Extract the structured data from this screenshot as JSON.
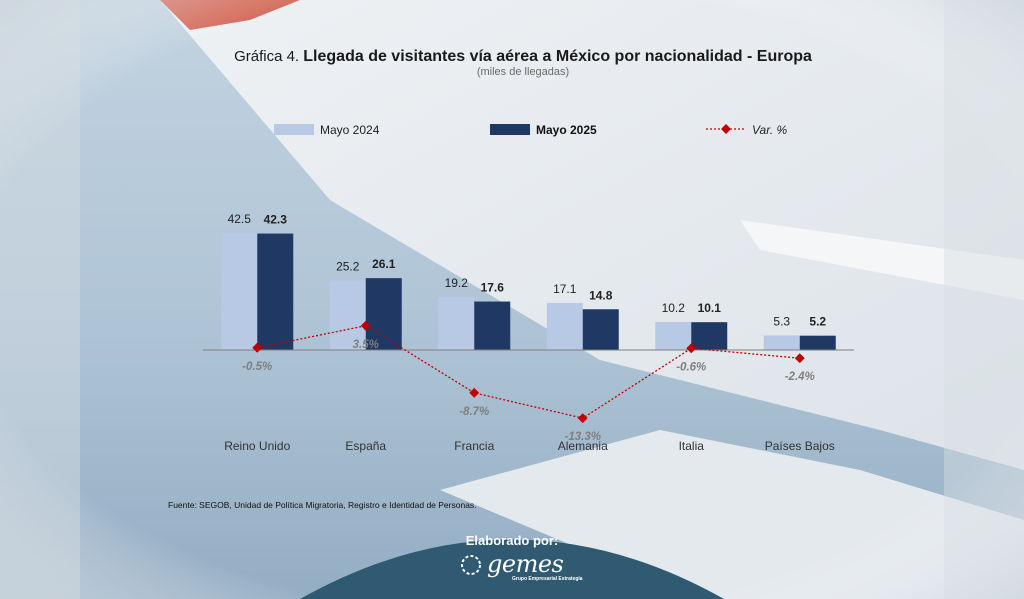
{
  "title": {
    "prefix": "Gráfica 4.",
    "main": "Llegada de visitantes vía aérea a México por nacionalidad - Europa",
    "subtitle": "(miles de llegadas)"
  },
  "source": "Fuente: SEGOB, Unidad de Política Migratoria, Registro e Identidad de Personas.",
  "footer": {
    "label": "Elaborado por:",
    "logo": "gemes",
    "logo_subtitle": "Grupo Empresarial Estrategia"
  },
  "colors": {
    "may2024": "#b8c9e6",
    "may2025": "#1f3864",
    "var": "#c00000",
    "footer_bg": "#2f5a72"
  },
  "chart_data": {
    "type": "bar",
    "categories": [
      "Reino Unido",
      "España",
      "Francia",
      "Alemania",
      "Italia",
      "Países Bajos"
    ],
    "series": [
      {
        "name": "Mayo 2024",
        "values": [
          42.5,
          25.2,
          19.2,
          17.1,
          10.2,
          5.3
        ],
        "value_labels": [
          "42.5",
          "25.2",
          "19.2",
          "17.1",
          "10.2",
          "5.3"
        ]
      },
      {
        "name": "Mayo 2025",
        "values": [
          42.3,
          26.1,
          17.6,
          14.8,
          10.1,
          5.2
        ],
        "value_labels": [
          "42.3",
          "26.1",
          "17.6",
          "14.8",
          "10.1",
          "5.2"
        ]
      }
    ],
    "line_series": {
      "name": "Var. %",
      "values": [
        -0.5,
        3.5,
        -8.7,
        -13.3,
        -0.6,
        -2.4
      ],
      "value_labels": [
        "-0.5%",
        "3.5%",
        "-8.7%",
        "-13.3%",
        "-0.6%",
        "-2.4%"
      ]
    },
    "legend": [
      "Mayo 2024",
      "Mayo 2025",
      "Var. %"
    ],
    "legend_position": "top",
    "grid": false,
    "ylim": [
      0,
      50
    ],
    "y2lim": [
      -16,
      6
    ]
  }
}
